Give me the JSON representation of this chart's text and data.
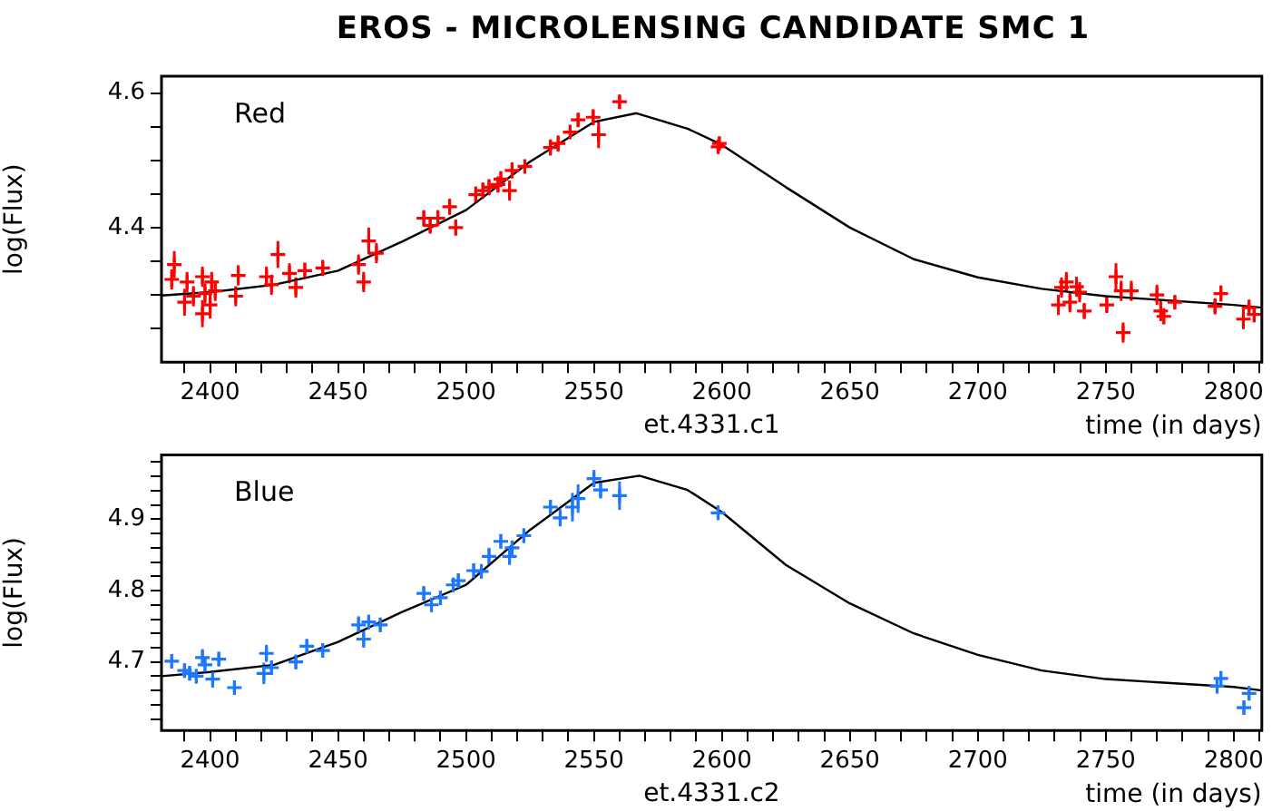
{
  "chart_data": [
    {
      "type": "scatter",
      "title": "EROS  -  MICROLENSING CANDIDATE SMC 1",
      "xlabel": "time (in days)",
      "ylabel": "log(Flux)",
      "annotations": [
        "et.4331.c1"
      ],
      "xlim": [
        2381,
        2811
      ],
      "ylim": [
        4.2,
        4.625
      ],
      "xticks": [
        {
          "value": 2390,
          "label": null
        },
        2400,
        {
          "value": 2410,
          "label": null
        },
        {
          "value": 2420,
          "label": null
        },
        {
          "value": 2430,
          "label": null
        },
        {
          "value": 2440,
          "label": null
        },
        2450,
        {
          "value": 2460,
          "label": null
        },
        {
          "value": 2470,
          "label": null
        },
        {
          "value": 2480,
          "label": null
        },
        {
          "value": 2490,
          "label": null
        },
        2500,
        {
          "value": 2510,
          "label": null
        },
        {
          "value": 2520,
          "label": null
        },
        {
          "value": 2530,
          "label": null
        },
        {
          "value": 2540,
          "label": null
        },
        2550,
        {
          "value": 2560,
          "label": null
        },
        {
          "value": 2570,
          "label": null
        },
        {
          "value": 2580,
          "label": null
        },
        {
          "value": 2590,
          "label": null
        },
        2600,
        {
          "value": 2610,
          "label": null
        },
        {
          "value": 2620,
          "label": null
        },
        {
          "value": 2630,
          "label": null
        },
        {
          "value": 2640,
          "label": null
        },
        2650,
        {
          "value": 2660,
          "label": null
        },
        {
          "value": 2670,
          "label": null
        },
        {
          "value": 2680,
          "label": null
        },
        {
          "value": 2690,
          "label": null
        },
        2700,
        {
          "value": 2710,
          "label": null
        },
        {
          "value": 2720,
          "label": null
        },
        {
          "value": 2730,
          "label": null
        },
        {
          "value": 2740,
          "label": null
        },
        2750,
        {
          "value": 2760,
          "label": null
        },
        {
          "value": 2770,
          "label": null
        },
        {
          "value": 2780,
          "label": null
        },
        {
          "value": 2790,
          "label": null
        },
        2800,
        {
          "value": 2810,
          "label": null
        }
      ],
      "yticks": [
        {
          "value": 4.25,
          "label": null
        },
        {
          "value": 4.3,
          "label": null
        },
        {
          "value": 4.35,
          "label": null
        },
        4.4,
        {
          "value": 4.45,
          "label": null
        },
        {
          "value": 4.5,
          "label": null
        },
        {
          "value": 4.55,
          "label": null
        },
        4.6
      ],
      "series": [
        {
          "name": "Red",
          "color": "#ff0000",
          "x": [
            2386,
            2385,
            2391,
            2390,
            2397,
            2397,
            2393.5,
            2400.6,
            2400,
            2402,
            2398,
            2410,
            2411,
            2422,
            2424,
            2426.5,
            2431,
            2433.5,
            2437,
            2444,
            2458,
            2460,
            2462,
            2465,
            2483.5,
            2486,
            2489,
            2493.6,
            2496,
            2503.8,
            2506.6,
            2509,
            2512.5,
            2513.6,
            2517,
            2518,
            2523,
            2533,
            2536,
            2540.7,
            2543.8,
            2549.7,
            2551.8,
            2560,
            2599,
            2598.5,
            2731.5,
            2732.7,
            2734.6,
            2736,
            2738.6,
            2739.8,
            2741.6,
            2750.4,
            2754,
            2756,
            2760,
            2756.8,
            2770,
            2771.5,
            2772.7,
            2777,
            2792.7,
            2795,
            2803.8,
            2806,
            2808
          ],
          "marker": "cross",
          "values": [
            4.345,
            4.323,
            4.319,
            4.289,
            4.327,
            4.272,
            4.298,
            4.319,
            4.285,
            4.306,
            4.302,
            4.298,
            4.329,
            4.327,
            4.315,
            4.36,
            4.332,
            4.311,
            4.336,
            4.34,
            4.345,
            4.319,
            4.38,
            4.362,
            4.414,
            4.403,
            4.414,
            4.431,
            4.4,
            4.449,
            4.455,
            4.46,
            4.464,
            4.472,
            4.455,
            4.485,
            4.491,
            4.519,
            4.525,
            4.542,
            4.56,
            4.564,
            4.538,
            4.587,
            4.525,
            4.52,
            4.285,
            4.311,
            4.319,
            4.289,
            4.312,
            4.304,
            4.276,
            4.285,
            4.327,
            4.306,
            4.306,
            4.244,
            4.3,
            4.276,
            4.268,
            4.289,
            4.283,
            4.302,
            4.264,
            4.281,
            4.271
          ],
          "errors": [
            0.02,
            0.015,
            0.015,
            0.02,
            0.015,
            0.02,
            0.015,
            0.015,
            0.02,
            0.015,
            0.015,
            0.015,
            0.015,
            0.015,
            0.015,
            0.02,
            0.015,
            0.015,
            0.012,
            0.012,
            0.015,
            0.015,
            0.02,
            0.015,
            0.012,
            0.012,
            0.012,
            0.012,
            0.012,
            0.012,
            0.012,
            0.012,
            0.012,
            0.012,
            0.015,
            0.012,
            0.01,
            0.012,
            0.012,
            0.01,
            0.01,
            0.012,
            0.02,
            0.01,
            0.01,
            0.01,
            0.015,
            0.015,
            0.015,
            0.015,
            0.015,
            0.015,
            0.012,
            0.012,
            0.02,
            0.015,
            0.015,
            0.015,
            0.015,
            0.015,
            0.012,
            0.01,
            0.012,
            0.012,
            0.015,
            0.012,
            0.012
          ]
        },
        {
          "type": "line",
          "color": "#000000",
          "x": [
            2381,
            2400,
            2425,
            2450,
            2475,
            2500,
            2525,
            2550,
            2566.6,
            2586.6,
            2600,
            2625,
            2650,
            2675,
            2700,
            2725,
            2750,
            2800,
            2811
          ],
          "values": [
            4.299,
            4.304,
            4.315,
            4.336,
            4.379,
            4.426,
            4.498,
            4.557,
            4.57,
            4.547,
            4.523,
            4.46,
            4.4,
            4.353,
            4.326,
            4.309,
            4.298,
            4.285,
            4.281
          ]
        }
      ]
    },
    {
      "type": "scatter",
      "xlabel": "time (in days)",
      "ylabel": "log(Flux)",
      "annotations": [
        "et.4331.c2"
      ],
      "xlim": [
        2381,
        2811
      ],
      "ylim": [
        4.604,
        4.99
      ],
      "xticks": [
        {
          "value": 2390,
          "label": null
        },
        2400,
        {
          "value": 2410,
          "label": null
        },
        {
          "value": 2420,
          "label": null
        },
        {
          "value": 2430,
          "label": null
        },
        {
          "value": 2440,
          "label": null
        },
        2450,
        {
          "value": 2460,
          "label": null
        },
        {
          "value": 2470,
          "label": null
        },
        {
          "value": 2480,
          "label": null
        },
        {
          "value": 2490,
          "label": null
        },
        2500,
        {
          "value": 2510,
          "label": null
        },
        {
          "value": 2520,
          "label": null
        },
        {
          "value": 2530,
          "label": null
        },
        {
          "value": 2540,
          "label": null
        },
        2550,
        {
          "value": 2560,
          "label": null
        },
        {
          "value": 2570,
          "label": null
        },
        {
          "value": 2580,
          "label": null
        },
        {
          "value": 2590,
          "label": null
        },
        2600,
        {
          "value": 2610,
          "label": null
        },
        {
          "value": 2620,
          "label": null
        },
        {
          "value": 2630,
          "label": null
        },
        {
          "value": 2640,
          "label": null
        },
        2650,
        {
          "value": 2660,
          "label": null
        },
        {
          "value": 2670,
          "label": null
        },
        {
          "value": 2680,
          "label": null
        },
        {
          "value": 2690,
          "label": null
        },
        2700,
        {
          "value": 2710,
          "label": null
        },
        {
          "value": 2720,
          "label": null
        },
        {
          "value": 2730,
          "label": null
        },
        {
          "value": 2740,
          "label": null
        },
        2750,
        {
          "value": 2760,
          "label": null
        },
        {
          "value": 2770,
          "label": null
        },
        {
          "value": 2780,
          "label": null
        },
        {
          "value": 2790,
          "label": null
        },
        2800,
        {
          "value": 2810,
          "label": null
        }
      ],
      "yticks": [
        {
          "value": 4.62,
          "label": null
        },
        {
          "value": 4.64,
          "label": null
        },
        {
          "value": 4.66,
          "label": null
        },
        {
          "value": 4.68,
          "label": null
        },
        4.7,
        {
          "value": 4.72,
          "label": null
        },
        {
          "value": 4.74,
          "label": null
        },
        {
          "value": 4.76,
          "label": null
        },
        {
          "value": 4.78,
          "label": null
        },
        4.8,
        {
          "value": 4.82,
          "label": null
        },
        {
          "value": 4.84,
          "label": null
        },
        {
          "value": 4.86,
          "label": null
        },
        {
          "value": 4.88,
          "label": null
        },
        4.9,
        {
          "value": 4.92,
          "label": null
        },
        {
          "value": 4.94,
          "label": null
        },
        {
          "value": 4.96,
          "label": null
        },
        {
          "value": 4.98,
          "label": null
        }
      ],
      "series": [
        {
          "name": "Blue",
          "color": "#1e78ff",
          "x": [
            2385,
            2390,
            2392,
            2394.6,
            2397,
            2398,
            2401,
            2403.4,
            2409.5,
            2421,
            2422,
            2424,
            2433.5,
            2437.8,
            2444,
            2458,
            2460,
            2462,
            2466.5,
            2483.5,
            2486.5,
            2490,
            2495,
            2497,
            2503,
            2506,
            2509,
            2513.6,
            2517,
            2518,
            2522.6,
            2533,
            2536.8,
            2541.6,
            2543.8,
            2550,
            2552.6,
            2560,
            2598.5,
            2793.5,
            2795,
            2804,
            2806
          ],
          "marker": "cross",
          "values": [
            4.701,
            4.688,
            4.684,
            4.68,
            4.706,
            4.696,
            4.676,
            4.704,
            4.664,
            4.684,
            4.712,
            4.692,
            4.7,
            4.722,
            4.716,
            4.752,
            4.732,
            4.756,
            4.752,
            4.796,
            4.78,
            4.79,
            4.808,
            4.814,
            4.828,
            4.827,
            4.848,
            4.869,
            4.848,
            4.86,
            4.877,
            4.917,
            4.902,
            4.917,
            4.929,
            4.957,
            4.941,
            4.933,
            4.909,
            4.666,
            4.677,
            4.636,
            4.656
          ],
          "errors": [
            0.01,
            0.01,
            0.01,
            0.01,
            0.012,
            0.01,
            0.012,
            0.01,
            0.01,
            0.015,
            0.012,
            0.01,
            0.01,
            0.01,
            0.01,
            0.012,
            0.012,
            0.01,
            0.01,
            0.01,
            0.01,
            0.01,
            0.01,
            0.01,
            0.01,
            0.01,
            0.012,
            0.01,
            0.012,
            0.01,
            0.01,
            0.01,
            0.012,
            0.02,
            0.02,
            0.012,
            0.012,
            0.02,
            0.01,
            0.01,
            0.01,
            0.01,
            0.01
          ]
        },
        {
          "type": "line",
          "color": "#000000",
          "x": [
            2381,
            2400,
            2425,
            2450,
            2475,
            2500,
            2525,
            2550,
            2567.8,
            2586.6,
            2600,
            2625,
            2650,
            2675,
            2700,
            2725,
            2750,
            2800,
            2811
          ],
          "values": [
            4.68,
            4.686,
            4.696,
            4.728,
            4.77,
            4.808,
            4.885,
            4.951,
            4.961,
            4.941,
            4.91,
            4.836,
            4.782,
            4.74,
            4.71,
            4.688,
            4.676,
            4.665,
            4.66
          ]
        }
      ]
    }
  ]
}
